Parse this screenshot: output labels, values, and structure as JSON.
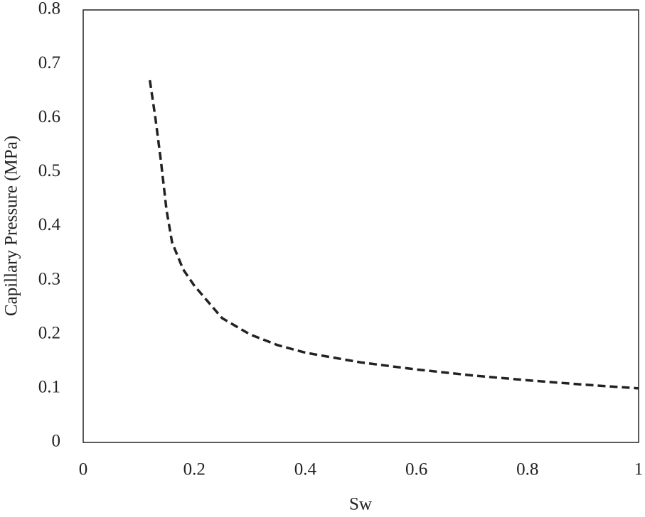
{
  "chart_data": {
    "type": "line",
    "x_label": "Sw",
    "y_label": "Capillary Pressure (MPa)",
    "x": [
      0.12,
      0.13,
      0.14,
      0.15,
      0.16,
      0.18,
      0.2,
      0.25,
      0.3,
      0.35,
      0.4,
      0.5,
      0.6,
      0.7,
      0.8,
      0.9,
      1.0
    ],
    "values": [
      0.67,
      0.6,
      0.52,
      0.43,
      0.37,
      0.32,
      0.29,
      0.23,
      0.2,
      0.18,
      0.166,
      0.148,
      0.135,
      0.124,
      0.115,
      0.107,
      0.1
    ],
    "color": "#222222",
    "dashed": true,
    "xlim": [
      0,
      1
    ],
    "xticks": [
      0,
      0.2,
      0.4,
      0.6,
      0.8,
      1
    ],
    "ylim": [
      0,
      0.8
    ],
    "yticks": [
      0,
      0.1,
      0.2,
      0.3,
      0.4,
      0.5,
      0.6,
      0.7,
      0.8
    ],
    "grid": false
  }
}
